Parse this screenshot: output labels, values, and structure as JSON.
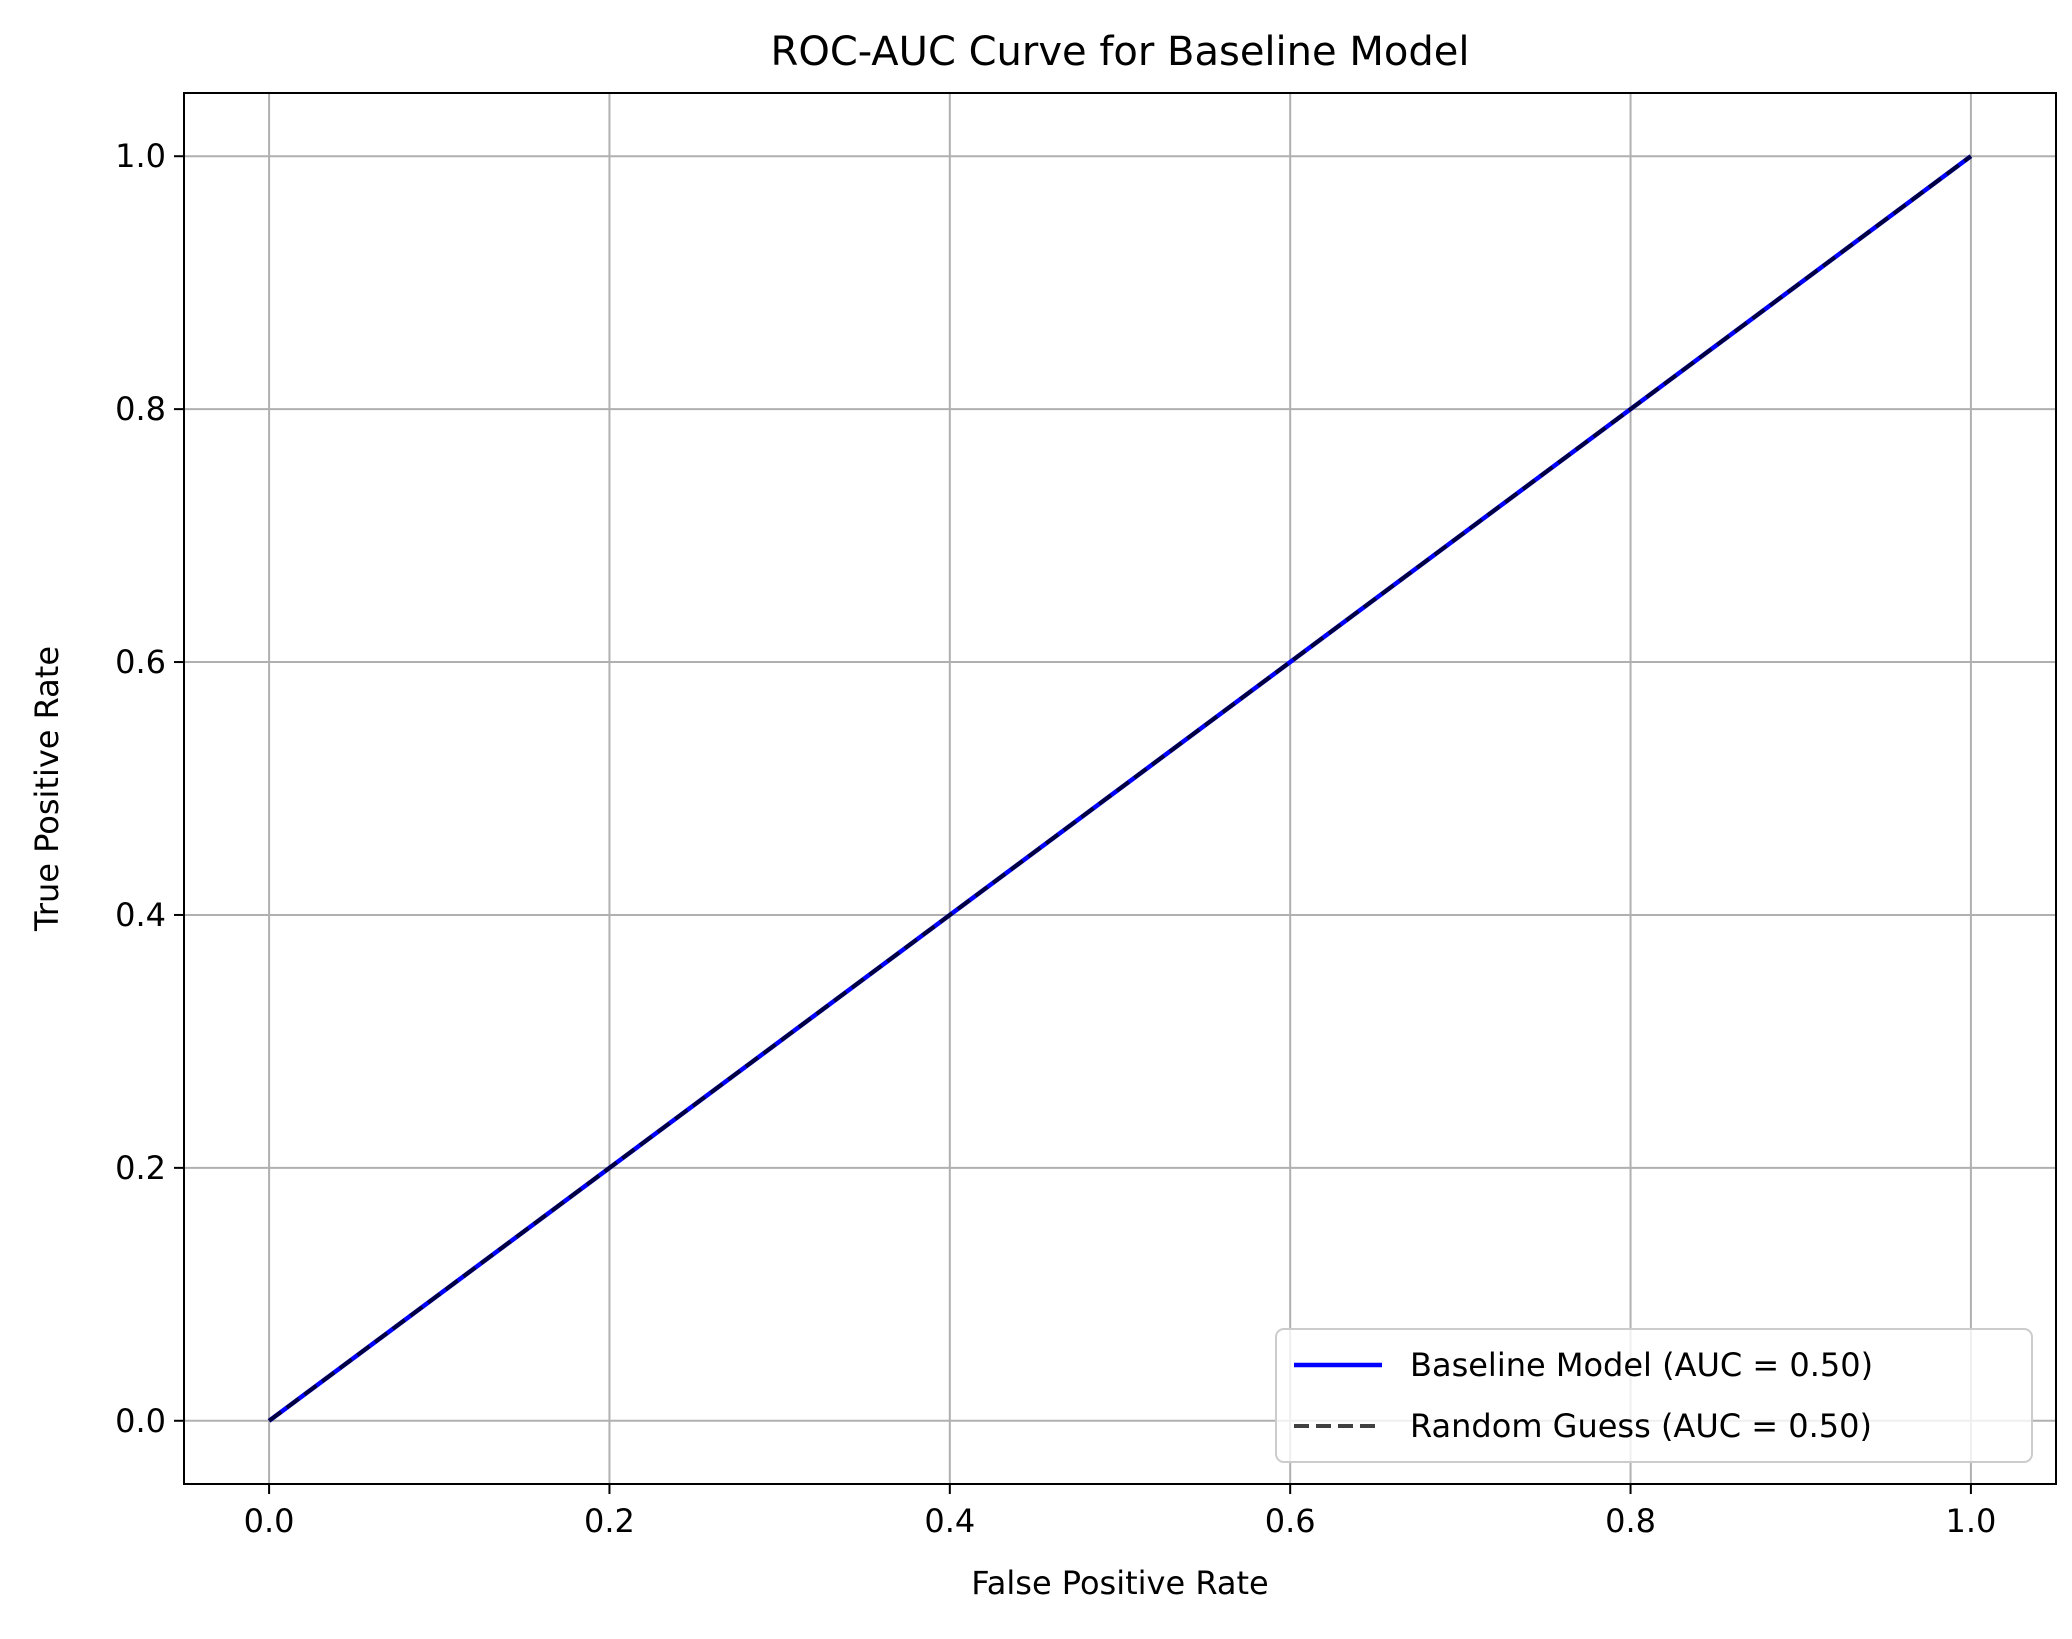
{
  "chart_data": {
    "type": "line",
    "title": "ROC-AUC Curve for Baseline Model",
    "xlabel": "False Positive Rate",
    "ylabel": "True Positive Rate",
    "xlim": [
      -0.05,
      1.05
    ],
    "ylim": [
      -0.05,
      1.05
    ],
    "xticks": [
      0.0,
      0.2,
      0.4,
      0.6,
      0.8,
      1.0
    ],
    "xtick_labels": [
      "0.0",
      "0.2",
      "0.4",
      "0.6",
      "0.8",
      "1.0"
    ],
    "yticks": [
      0.0,
      0.2,
      0.4,
      0.6,
      0.8,
      1.0
    ],
    "ytick_labels": [
      "0.0",
      "0.2",
      "0.4",
      "0.6",
      "0.8",
      "1.0"
    ],
    "grid": true,
    "legend_position": "lower-right",
    "series": [
      {
        "name": "Baseline Model (AUC = 0.50)",
        "x": [
          0.0,
          1.0
        ],
        "y": [
          0.0,
          1.0
        ],
        "color": "#0000ff",
        "style": "solid"
      },
      {
        "name": "Random Guess (AUC = 0.50)",
        "x": [
          0.0,
          1.0
        ],
        "y": [
          0.0,
          1.0
        ],
        "color": "#000000",
        "style": "dashed"
      }
    ]
  }
}
